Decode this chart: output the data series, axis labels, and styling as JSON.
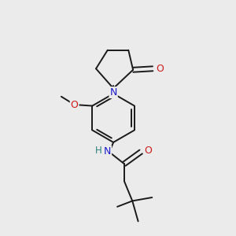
{
  "background_color": "#ebebeb",
  "bond_color": "#1a1a1a",
  "atom_colors": {
    "N": "#1a1acc",
    "O": "#cc1a1a",
    "H": "#2d8080",
    "C": "#1a1a1a"
  },
  "figsize": [
    3.0,
    3.0
  ],
  "dpi": 100,
  "bond_lw": 1.4,
  "font_size": 8.5
}
